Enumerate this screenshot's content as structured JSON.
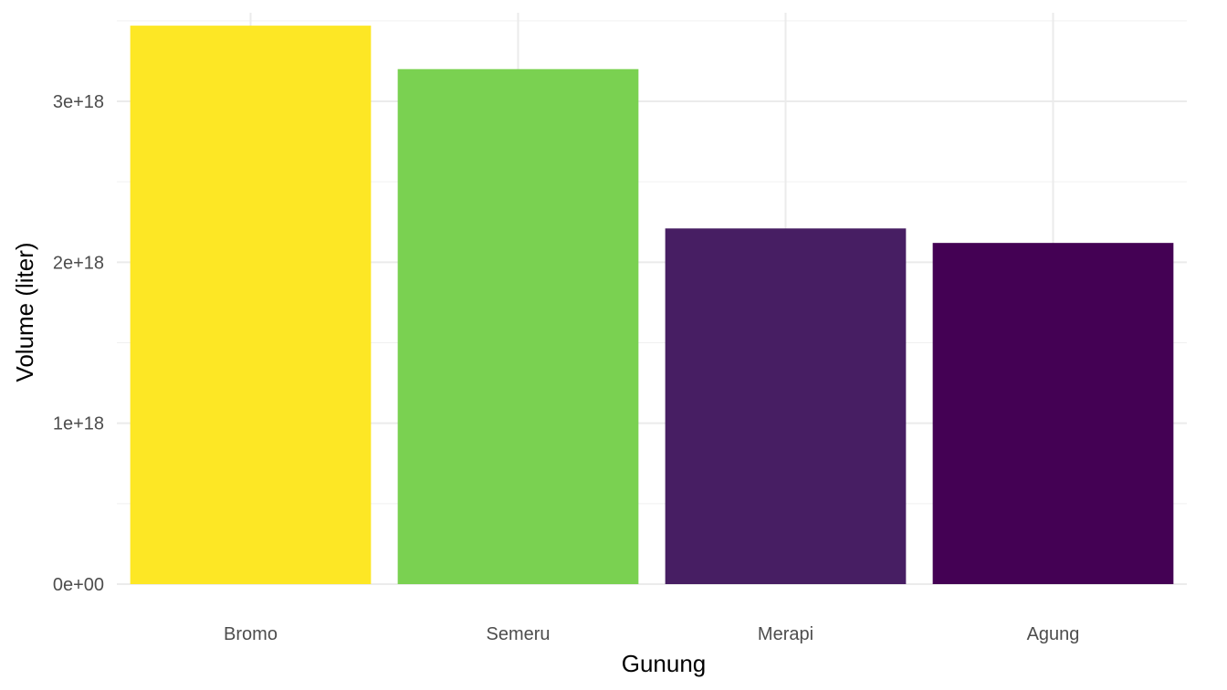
{
  "chart_data": {
    "type": "bar",
    "title": "",
    "xlabel": "Gunung",
    "ylabel": "Volume (liter)",
    "categories": [
      "Bromo",
      "Semeru",
      "Merapi",
      "Agung"
    ],
    "values": [
      3.47e+18,
      3.2e+18,
      2.21e+18,
      2.12e+18
    ],
    "colors": [
      "#FDE725",
      "#7AD151",
      "#471E63",
      "#440154"
    ],
    "ylim": [
      0,
      3.55e+18
    ],
    "yticks": [
      0,
      1e+18,
      2e+18,
      3e+18
    ],
    "ytick_labels": [
      "0e+00",
      "1e+18",
      "2e+18",
      "3e+18"
    ],
    "grid": true,
    "legend": "none"
  }
}
